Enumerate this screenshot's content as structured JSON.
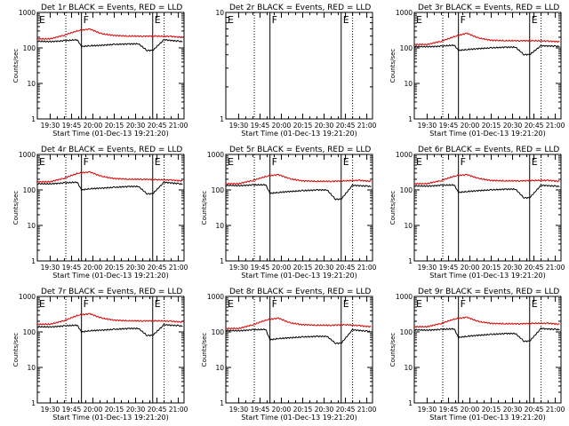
{
  "chart_data": [
    {
      "type": "line",
      "title": "Det 1r BLACK = Events, RED = LLD",
      "xlabel": "Start Time (01-Dec-13 19:21:20)",
      "ylabel": "Counts/sec",
      "yscale": "log",
      "ylim": [
        1,
        1000
      ],
      "x_ticks": [
        "19:30",
        "19:45",
        "20:00",
        "20:15",
        "20:30",
        "20:45",
        "21:00"
      ],
      "y_ticks": [
        "1",
        "10",
        "100",
        "1000"
      ],
      "flags": [
        {
          "label": "E",
          "at": "19:21"
        },
        {
          "label": "F",
          "at": "19:52"
        },
        {
          "label": "E",
          "at": "20:42"
        }
      ],
      "series": [
        {
          "name": "Events",
          "color": "#000000",
          "x": [
            "19:21",
            "19:30",
            "19:40",
            "19:49",
            "19:52",
            "19:58",
            "20:05",
            "20:15",
            "20:25",
            "20:32",
            "20:38",
            "20:42",
            "20:50",
            "21:00",
            "21:03"
          ],
          "values": [
            155,
            150,
            160,
            170,
            110,
            115,
            118,
            125,
            130,
            130,
            85,
            85,
            170,
            155,
            150
          ]
        },
        {
          "name": "LLD",
          "color": "#dd0000",
          "x": [
            "19:21",
            "19:30",
            "19:40",
            "19:50",
            "19:58",
            "20:06",
            "20:15",
            "20:25",
            "20:35",
            "20:45",
            "20:55",
            "21:03"
          ],
          "values": [
            180,
            180,
            230,
            310,
            340,
            250,
            225,
            215,
            215,
            215,
            210,
            200
          ]
        }
      ]
    },
    {
      "type": "line",
      "title": "Det 2r BLACK = Events, RED = LLD",
      "xlabel": "Start Time (01-Dec-13 19:21:20)",
      "ylabel": "",
      "yscale": "log",
      "ylim": [
        1,
        10
      ],
      "x_ticks": [
        "19:30",
        "19:45",
        "20:00",
        "20:15",
        "20:30",
        "20:45",
        "21:00"
      ],
      "y_ticks": [
        "1",
        "10"
      ],
      "flags": [
        {
          "label": "E",
          "at": "19:21"
        },
        {
          "label": "F",
          "at": "19:52"
        },
        {
          "label": "E",
          "at": "20:42"
        }
      ],
      "series": []
    },
    {
      "type": "line",
      "title": "Det 3r BLACK = Events, RED = LLD",
      "xlabel": "Start Time (01-Dec-13 19:21:20)",
      "ylabel": "Counts/sec",
      "yscale": "log",
      "ylim": [
        1,
        1000
      ],
      "x_ticks": [
        "19:30",
        "19:45",
        "20:00",
        "20:15",
        "20:30",
        "20:45",
        "21:00"
      ],
      "y_ticks": [
        "1",
        "10",
        "100",
        "1000"
      ],
      "flags": [
        {
          "label": "E",
          "at": "19:21"
        },
        {
          "label": "F",
          "at": "19:52"
        },
        {
          "label": "E",
          "at": "20:42"
        }
      ],
      "series": [
        {
          "name": "Events",
          "color": "#000000",
          "x": [
            "19:21",
            "19:30",
            "19:40",
            "19:49",
            "19:52",
            "19:58",
            "20:05",
            "20:15",
            "20:25",
            "20:32",
            "20:38",
            "20:42",
            "20:50",
            "21:00",
            "21:03"
          ],
          "values": [
            110,
            108,
            112,
            120,
            85,
            90,
            95,
            100,
            105,
            105,
            65,
            65,
            115,
            112,
            110
          ]
        },
        {
          "name": "LLD",
          "color": "#dd0000",
          "x": [
            "19:21",
            "19:30",
            "19:40",
            "19:50",
            "19:58",
            "20:06",
            "20:15",
            "20:25",
            "20:35",
            "20:45",
            "20:55",
            "21:03"
          ],
          "values": [
            125,
            125,
            155,
            215,
            260,
            190,
            165,
            160,
            160,
            160,
            155,
            150
          ]
        }
      ]
    },
    {
      "type": "line",
      "title": "Det 4r BLACK = Events, RED = LLD",
      "xlabel": "Start Time (01-Dec-13 19:21:20)",
      "ylabel": "Counts/sec",
      "yscale": "log",
      "ylim": [
        1,
        1000
      ],
      "x_ticks": [
        "19:30",
        "19:45",
        "20:00",
        "20:15",
        "20:30",
        "20:45",
        "21:00"
      ],
      "y_ticks": [
        "1",
        "10",
        "100",
        "1000"
      ],
      "flags": [
        {
          "label": "E",
          "at": "19:21"
        },
        {
          "label": "F",
          "at": "19:52"
        },
        {
          "label": "E",
          "at": "20:42"
        }
      ],
      "series": [
        {
          "name": "Events",
          "color": "#000000",
          "x": [
            "19:21",
            "19:30",
            "19:40",
            "19:49",
            "19:52",
            "19:58",
            "20:05",
            "20:15",
            "20:25",
            "20:32",
            "20:38",
            "20:42",
            "20:50",
            "21:00",
            "21:03"
          ],
          "values": [
            150,
            148,
            158,
            165,
            100,
            108,
            112,
            118,
            125,
            125,
            78,
            78,
            165,
            150,
            145
          ]
        },
        {
          "name": "LLD",
          "color": "#dd0000",
          "x": [
            "19:21",
            "19:30",
            "19:40",
            "19:50",
            "19:58",
            "20:06",
            "20:15",
            "20:25",
            "20:35",
            "20:45",
            "20:55",
            "21:03"
          ],
          "values": [
            170,
            170,
            215,
            300,
            320,
            240,
            210,
            200,
            200,
            195,
            190,
            180
          ]
        }
      ]
    },
    {
      "type": "line",
      "title": "Det 5r BLACK = Events, RED = LLD",
      "xlabel": "Start Time (01-Dec-13 19:21:20)",
      "ylabel": "Counts/sec",
      "yscale": "log",
      "ylim": [
        1,
        1000
      ],
      "x_ticks": [
        "19:30",
        "19:45",
        "20:00",
        "20:15",
        "20:30",
        "20:45",
        "21:00"
      ],
      "y_ticks": [
        "1",
        "10",
        "100",
        "1000"
      ],
      "flags": [
        {
          "label": "E",
          "at": "19:21"
        },
        {
          "label": "F",
          "at": "19:52"
        },
        {
          "label": "E",
          "at": "20:42"
        }
      ],
      "series": [
        {
          "name": "Events",
          "color": "#000000",
          "x": [
            "19:21",
            "19:30",
            "19:40",
            "19:49",
            "19:52",
            "19:58",
            "20:05",
            "20:15",
            "20:25",
            "20:32",
            "20:38",
            "20:42",
            "20:50",
            "21:00",
            "21:03"
          ],
          "values": [
            135,
            132,
            138,
            140,
            80,
            85,
            90,
            95,
            100,
            100,
            55,
            55,
            135,
            128,
            125
          ]
        },
        {
          "name": "LLD",
          "color": "#dd0000",
          "x": [
            "19:21",
            "19:30",
            "19:40",
            "19:50",
            "19:58",
            "20:06",
            "20:15",
            "20:25",
            "20:35",
            "20:45",
            "20:55",
            "21:03"
          ],
          "values": [
            150,
            150,
            185,
            245,
            270,
            205,
            180,
            175,
            175,
            180,
            185,
            175
          ]
        }
      ]
    },
    {
      "type": "line",
      "title": "Det 6r BLACK = Events, RED = LLD",
      "xlabel": "Start Time (01-Dec-13 19:21:20)",
      "ylabel": "Counts/sec",
      "yscale": "log",
      "ylim": [
        1,
        1000
      ],
      "x_ticks": [
        "19:30",
        "19:45",
        "20:00",
        "20:15",
        "20:30",
        "20:45",
        "21:00"
      ],
      "y_ticks": [
        "1",
        "10",
        "100",
        "1000"
      ],
      "flags": [
        {
          "label": "E",
          "at": "19:21"
        },
        {
          "label": "F",
          "at": "19:52"
        },
        {
          "label": "E",
          "at": "20:42"
        }
      ],
      "series": [
        {
          "name": "Events",
          "color": "#000000",
          "x": [
            "19:21",
            "19:30",
            "19:40",
            "19:49",
            "19:52",
            "19:58",
            "20:05",
            "20:15",
            "20:25",
            "20:32",
            "20:38",
            "20:42",
            "20:50",
            "21:00",
            "21:03"
          ],
          "values": [
            130,
            128,
            135,
            138,
            85,
            90,
            95,
            100,
            105,
            105,
            60,
            60,
            135,
            128,
            125
          ]
        },
        {
          "name": "LLD",
          "color": "#dd0000",
          "x": [
            "19:21",
            "19:30",
            "19:40",
            "19:50",
            "19:58",
            "20:06",
            "20:15",
            "20:25",
            "20:35",
            "20:45",
            "20:55",
            "21:03"
          ],
          "values": [
            150,
            150,
            185,
            250,
            270,
            210,
            185,
            180,
            180,
            185,
            185,
            175
          ]
        }
      ]
    },
    {
      "type": "line",
      "title": "Det 7r BLACK = Events, RED = LLD",
      "xlabel": "Start Time (01-Dec-13 19:21:20)",
      "ylabel": "Counts/sec",
      "yscale": "log",
      "ylim": [
        1,
        1000
      ],
      "x_ticks": [
        "19:30",
        "19:45",
        "20:00",
        "20:15",
        "20:30",
        "20:45",
        "21:00"
      ],
      "y_ticks": [
        "1",
        "10",
        "100",
        "1000"
      ],
      "flags": [
        {
          "label": "E",
          "at": "19:21"
        },
        {
          "label": "F",
          "at": "19:52"
        },
        {
          "label": "E",
          "at": "20:42"
        }
      ],
      "series": [
        {
          "name": "Events",
          "color": "#000000",
          "x": [
            "19:21",
            "19:30",
            "19:40",
            "19:49",
            "19:52",
            "19:58",
            "20:05",
            "20:15",
            "20:25",
            "20:32",
            "20:38",
            "20:42",
            "20:50",
            "21:00",
            "21:03"
          ],
          "values": [
            140,
            138,
            148,
            155,
            100,
            108,
            112,
            118,
            125,
            125,
            80,
            80,
            160,
            150,
            145
          ]
        },
        {
          "name": "LLD",
          "color": "#dd0000",
          "x": [
            "19:21",
            "19:30",
            "19:40",
            "19:50",
            "19:58",
            "20:06",
            "20:15",
            "20:25",
            "20:35",
            "20:45",
            "20:55",
            "21:03"
          ],
          "values": [
            165,
            165,
            210,
            300,
            325,
            245,
            215,
            205,
            205,
            205,
            200,
            190
          ]
        }
      ]
    },
    {
      "type": "line",
      "title": "Det 8r BLACK = Events, RED = LLD",
      "xlabel": "Start Time (01-Dec-13 19:21:20)",
      "ylabel": "Counts/sec",
      "yscale": "log",
      "ylim": [
        1,
        1000
      ],
      "x_ticks": [
        "19:30",
        "19:45",
        "20:00",
        "20:15",
        "20:30",
        "20:45",
        "21:00"
      ],
      "y_ticks": [
        "1",
        "10",
        "100",
        "1000"
      ],
      "flags": [
        {
          "label": "E",
          "at": "19:21"
        },
        {
          "label": "F",
          "at": "19:52"
        },
        {
          "label": "E",
          "at": "20:42"
        }
      ],
      "series": [
        {
          "name": "Events",
          "color": "#000000",
          "x": [
            "19:21",
            "19:30",
            "19:40",
            "19:49",
            "19:52",
            "19:58",
            "20:05",
            "20:15",
            "20:25",
            "20:32",
            "20:38",
            "20:42",
            "20:50",
            "21:00",
            "21:03"
          ],
          "values": [
            110,
            108,
            115,
            118,
            60,
            65,
            68,
            72,
            75,
            75,
            48,
            48,
            115,
            105,
            100
          ]
        },
        {
          "name": "LLD",
          "color": "#dd0000",
          "x": [
            "19:21",
            "19:30",
            "19:40",
            "19:50",
            "19:58",
            "20:06",
            "20:15",
            "20:25",
            "20:35",
            "20:45",
            "20:55",
            "21:03"
          ],
          "values": [
            125,
            125,
            160,
            220,
            245,
            180,
            160,
            155,
            155,
            160,
            150,
            140
          ]
        }
      ]
    },
    {
      "type": "line",
      "title": "Det 9r BLACK = Events, RED = LLD",
      "xlabel": "Start Time (01-Dec-13 19:21:20)",
      "ylabel": "Counts/sec",
      "yscale": "log",
      "ylim": [
        1,
        1000
      ],
      "x_ticks": [
        "19:30",
        "19:45",
        "20:00",
        "20:15",
        "20:30",
        "20:45",
        "21:00"
      ],
      "y_ticks": [
        "1",
        "10",
        "100",
        "1000"
      ],
      "flags": [
        {
          "label": "E",
          "at": "19:21"
        },
        {
          "label": "F",
          "at": "19:52"
        },
        {
          "label": "E",
          "at": "20:42"
        }
      ],
      "series": [
        {
          "name": "Events",
          "color": "#000000",
          "x": [
            "19:21",
            "19:30",
            "19:40",
            "19:49",
            "19:52",
            "19:58",
            "20:05",
            "20:15",
            "20:25",
            "20:32",
            "20:38",
            "20:42",
            "20:50",
            "21:00",
            "21:03"
          ],
          "values": [
            115,
            112,
            118,
            122,
            70,
            75,
            80,
            85,
            90,
            90,
            55,
            55,
            125,
            118,
            115
          ]
        },
        {
          "name": "LLD",
          "color": "#dd0000",
          "x": [
            "19:21",
            "19:30",
            "19:40",
            "19:50",
            "19:58",
            "20:06",
            "20:15",
            "20:25",
            "20:35",
            "20:45",
            "20:55",
            "21:03"
          ],
          "values": [
            140,
            140,
            175,
            235,
            260,
            195,
            175,
            170,
            170,
            175,
            175,
            165
          ]
        }
      ]
    }
  ]
}
